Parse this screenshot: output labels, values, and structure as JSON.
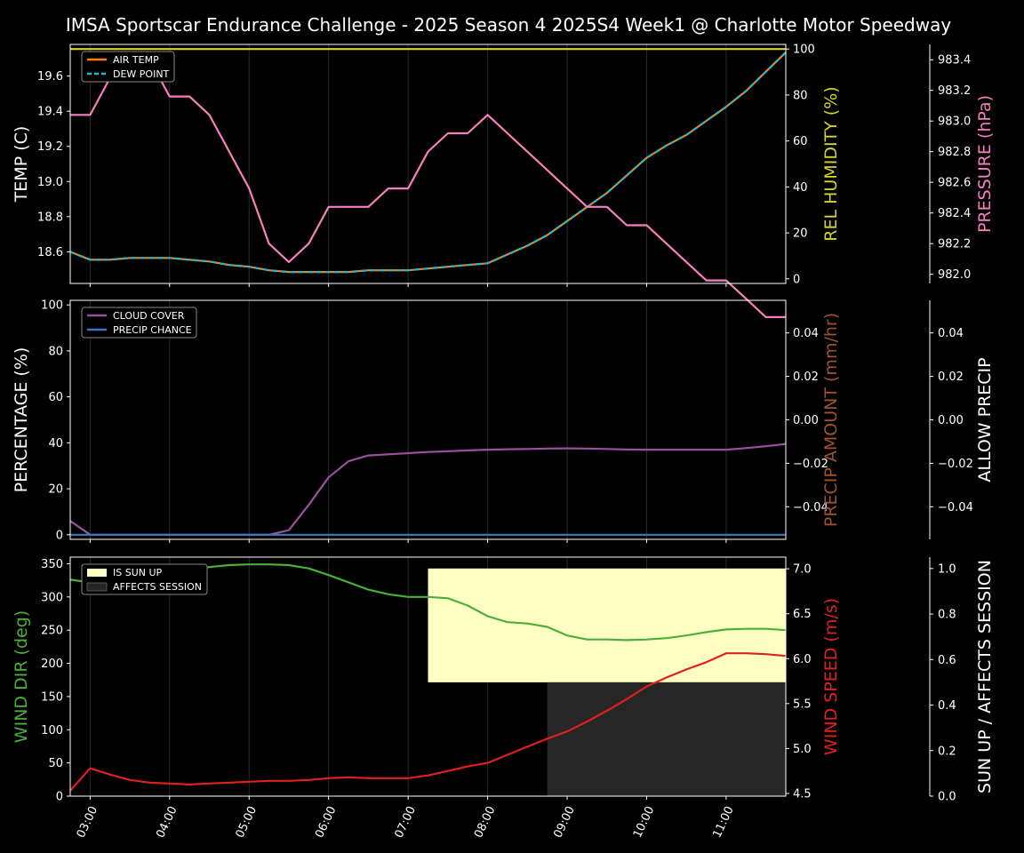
{
  "title": "IMSA Sportscar Endurance Challenge - 2025 Season 4 2025S4 Week1 @ Charlotte Motor Speedway",
  "x_tick_labels": [
    "03:00",
    "04:00",
    "05:00",
    "06:00",
    "07:00",
    "08:00",
    "09:00",
    "10:00",
    "11:00"
  ],
  "colors": {
    "background": "#000000",
    "air_temp": "#ff7f0e",
    "dew_point": "#17becf",
    "humidity": "#d4d42a",
    "pressure": "#f77fbf",
    "cloud_cover": "#9b4f9e",
    "precip_chance": "#3b78c4",
    "precip_amount": "#a0522d",
    "wind_dir": "#4caf3c",
    "wind_speed": "#e02020",
    "sun_up": "#ffffc4",
    "affects_session": "#262626"
  },
  "chart_data": [
    {
      "type": "line",
      "panel": "temperature",
      "title": "IMSA Sportscar Endurance Challenge - 2025 Season 4 2025S4 Week1 @ Charlotte Motor Speedway",
      "xlabel": "",
      "ylabel": "TEMP (C)",
      "ylabel_right": "REL HUMIDITY (%)",
      "ylabel_right2": "PRESSURE (hPa)",
      "ylim": [
        18.42,
        19.78
      ],
      "ylim_right": [
        -2,
        102
      ],
      "ylim_right2": [
        981.94,
        983.5
      ],
      "y_ticks": [
        "18.6",
        "18.8",
        "19.0",
        "19.2",
        "19.4",
        "19.6"
      ],
      "y_ticks_right": [
        "0",
        "20",
        "40",
        "60",
        "80",
        "100"
      ],
      "y_ticks_right2": [
        "982.0",
        "982.2",
        "982.4",
        "982.6",
        "982.8",
        "983.0",
        "983.2",
        "983.4"
      ],
      "xlim": [
        2.75,
        11.75
      ],
      "legend": [
        "AIR TEMP",
        "DEW POINT"
      ],
      "legend_position": "top-left",
      "x": [
        2.75,
        3.0,
        3.25,
        3.5,
        3.75,
        4.0,
        4.25,
        4.5,
        4.75,
        5.0,
        5.25,
        5.5,
        5.75,
        6.0,
        6.25,
        6.5,
        6.75,
        7.0,
        7.25,
        7.5,
        7.75,
        8.0,
        8.25,
        8.5,
        8.75,
        9.0,
        9.25,
        9.5,
        9.75,
        10.0,
        10.25,
        10.5,
        10.75,
        11.0,
        11.25,
        11.5,
        11.75
      ],
      "series": [
        {
          "name": "AIR TEMP",
          "axis": "left",
          "values": [
            18.6,
            18.555,
            18.555,
            18.565,
            18.565,
            18.565,
            18.555,
            18.545,
            18.525,
            18.515,
            18.495,
            18.485,
            18.485,
            18.485,
            18.485,
            18.495,
            18.495,
            18.495,
            18.505,
            18.515,
            18.525,
            18.535,
            18.585,
            18.635,
            18.695,
            18.775,
            18.855,
            18.935,
            19.035,
            19.135,
            19.205,
            19.265,
            19.345,
            19.425,
            19.515,
            19.625,
            19.735
          ]
        },
        {
          "name": "DEW POINT",
          "axis": "left",
          "values": [
            18.6,
            18.555,
            18.555,
            18.565,
            18.565,
            18.565,
            18.555,
            18.545,
            18.525,
            18.515,
            18.495,
            18.485,
            18.485,
            18.485,
            18.485,
            18.495,
            18.495,
            18.495,
            18.505,
            18.515,
            18.525,
            18.535,
            18.585,
            18.635,
            18.695,
            18.775,
            18.855,
            18.935,
            19.035,
            19.135,
            19.205,
            19.265,
            19.345,
            19.425,
            19.515,
            19.625,
            19.735
          ]
        },
        {
          "name": "REL HUMIDITY",
          "axis": "right",
          "values": [
            100,
            100,
            100,
            100,
            100,
            100,
            100,
            100,
            100,
            100,
            100,
            100,
            100,
            100,
            100,
            100,
            100,
            100,
            100,
            100,
            100,
            100,
            100,
            100,
            100,
            100,
            100,
            100,
            100,
            100,
            100,
            100,
            100,
            100,
            100,
            100,
            100
          ]
        },
        {
          "name": "PRESSURE",
          "axis": "right2",
          "values": [
            983.04,
            983.04,
            983.28,
            983.4,
            983.4,
            983.16,
            983.16,
            983.04,
            982.8,
            982.56,
            982.2,
            982.08,
            982.2,
            982.44,
            982.44,
            982.44,
            982.56,
            982.56,
            982.8,
            982.92,
            982.92,
            983.04,
            982.92,
            982.8,
            982.68,
            982.56,
            982.44,
            982.44,
            982.32,
            982.32,
            982.2,
            982.08,
            981.96,
            981.96,
            981.84,
            981.72,
            981.72
          ]
        }
      ]
    },
    {
      "type": "line",
      "panel": "precipitation",
      "xlabel": "",
      "ylabel": "PERCENTAGE (%)",
      "ylabel_right": "PRECIP AMOUNT (mm/hr)",
      "ylabel_right2": "ALLOW PRECIP",
      "ylim": [
        -2,
        102
      ],
      "ylim_right": [
        -0.055,
        0.055
      ],
      "ylim_right2": [
        -0.055,
        0.055
      ],
      "y_ticks": [
        "0",
        "20",
        "40",
        "60",
        "80",
        "100"
      ],
      "y_ticks_right": [
        "−0.04",
        "−0.02",
        "0.00",
        "0.02",
        "0.04"
      ],
      "y_ticks_right2": [
        "−0.04",
        "−0.02",
        "0.00",
        "0.02",
        "0.04"
      ],
      "xlim": [
        2.75,
        11.75
      ],
      "legend": [
        "CLOUD COVER",
        "PRECIP CHANCE"
      ],
      "legend_position": "top-left",
      "x": [
        2.75,
        3.0,
        3.25,
        3.5,
        3.75,
        4.0,
        4.25,
        4.5,
        4.75,
        5.0,
        5.25,
        5.5,
        5.75,
        6.0,
        6.25,
        6.5,
        6.75,
        7.0,
        7.25,
        7.5,
        7.75,
        8.0,
        8.25,
        8.5,
        8.75,
        9.0,
        9.25,
        9.5,
        9.75,
        10.0,
        10.25,
        10.5,
        10.75,
        11.0,
        11.25,
        11.5,
        11.75
      ],
      "series": [
        {
          "name": "CLOUD COVER",
          "axis": "left",
          "values": [
            6,
            0,
            0,
            0,
            0,
            0,
            0,
            0,
            0,
            0,
            0,
            2,
            13,
            25,
            32,
            34.5,
            35,
            35.5,
            36,
            36.3,
            36.7,
            37,
            37.2,
            37.3,
            37.5,
            37.6,
            37.5,
            37.3,
            37.1,
            37,
            37,
            37,
            37,
            37,
            37.7,
            38.5,
            39.5
          ]
        },
        {
          "name": "PRECIP CHANCE",
          "axis": "left",
          "values": [
            0,
            0,
            0,
            0,
            0,
            0,
            0,
            0,
            0,
            0,
            0,
            0,
            0,
            0,
            0,
            0,
            0,
            0,
            0,
            0,
            0,
            0,
            0,
            0,
            0,
            0,
            0,
            0,
            0,
            0,
            0,
            0,
            0,
            0,
            0,
            0,
            0
          ]
        }
      ]
    },
    {
      "type": "line",
      "panel": "wind",
      "xlabel": "",
      "ylabel": "WIND DIR (deg)",
      "ylabel_right": "WIND SPEED (m/s)",
      "ylabel_right2": "SUN UP / AFFECTS SESSION",
      "ylim": [
        0,
        360
      ],
      "ylim_right": [
        4.47,
        7.13
      ],
      "ylim_right2": [
        0,
        1.05
      ],
      "y_ticks": [
        "0",
        "50",
        "100",
        "150",
        "200",
        "250",
        "300",
        "350"
      ],
      "y_ticks_right": [
        "4.5",
        "5.0",
        "5.5",
        "6.0",
        "6.5",
        "7.0"
      ],
      "y_ticks_right2": [
        "0.0",
        "0.2",
        "0.4",
        "0.6",
        "0.8",
        "1.0"
      ],
      "xlim": [
        2.75,
        11.75
      ],
      "x_tick_labels": [
        "03:00",
        "04:00",
        "05:00",
        "06:00",
        "07:00",
        "08:00",
        "09:00",
        "10:00",
        "11:00"
      ],
      "legend": [
        "IS SUN UP",
        "AFFECTS SESSION"
      ],
      "legend_position": "top-left",
      "x": [
        2.75,
        3.0,
        3.25,
        3.5,
        3.75,
        4.0,
        4.25,
        4.5,
        4.75,
        5.0,
        5.25,
        5.5,
        5.75,
        6.0,
        6.25,
        6.5,
        6.75,
        7.0,
        7.25,
        7.5,
        7.75,
        8.0,
        8.25,
        8.5,
        8.75,
        9.0,
        9.25,
        9.5,
        9.75,
        10.0,
        10.25,
        10.5,
        10.75,
        11.0,
        11.25,
        11.5,
        11.75
      ],
      "series": [
        {
          "name": "WIND DIR",
          "axis": "left",
          "values": [
            326,
            322,
            321,
            323,
            327,
            333,
            340,
            345,
            348,
            349,
            349,
            348,
            343,
            333,
            322,
            311,
            304,
            300,
            300,
            298,
            287,
            271,
            262,
            260,
            255,
            242,
            236,
            236,
            235,
            236,
            238,
            242,
            247,
            251,
            252,
            252,
            250
          ]
        },
        {
          "name": "WIND SPEED",
          "axis": "right",
          "values": [
            4.53,
            4.78,
            4.71,
            4.65,
            4.62,
            4.61,
            4.6,
            4.61,
            4.62,
            4.63,
            4.64,
            4.64,
            4.65,
            4.67,
            4.68,
            4.67,
            4.67,
            4.67,
            4.7,
            4.75,
            4.8,
            4.84,
            4.93,
            5.02,
            5.11,
            5.19,
            5.3,
            5.42,
            5.55,
            5.69,
            5.79,
            5.88,
            5.96,
            6.06,
            6.06,
            6.05,
            6.03
          ]
        }
      ],
      "bands": [
        {
          "name": "IS SUN UP",
          "x0": 7.25,
          "x1": 11.75,
          "y0": 0.5,
          "y1": 1.0
        },
        {
          "name": "AFFECTS SESSION",
          "x0": 8.75,
          "x1": 11.75,
          "y0": 0.0,
          "y1": 0.5
        }
      ]
    }
  ]
}
